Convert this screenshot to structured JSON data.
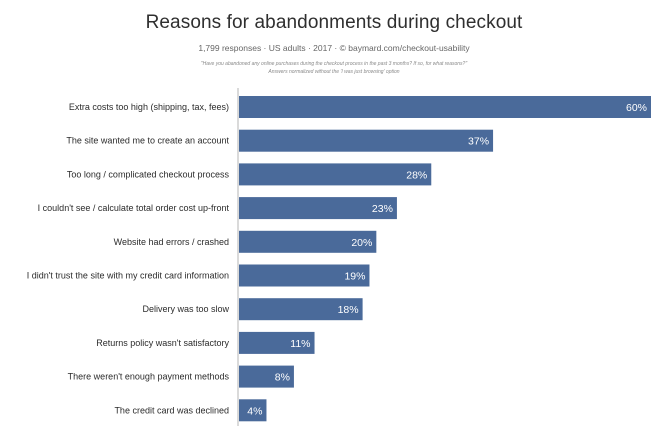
{
  "chart_data": {
    "type": "bar",
    "orientation": "horizontal",
    "title": "Reasons for abandonments during checkout",
    "subtitle": "1,799 responses · US adults · 2017 · © baymard.com/checkout-usability",
    "question_note": "\"Have you abandoned any online purchases during the checkout process in the past 3 months? If so, for what reasons?\"",
    "answers_note": "Answers normalized without the 'I was just browsing' option",
    "categories": [
      "Extra costs too high (shipping, tax, fees)",
      "The site wanted me to create an account",
      "Too long / complicated checkout process",
      "I couldn't see / calculate total order cost up-front",
      "Website had errors / crashed",
      "I didn't trust the site with my credit card information",
      "Delivery was too slow",
      "Returns policy wasn't satisfactory",
      "There weren't enough payment methods",
      "The credit card was declined"
    ],
    "values": [
      60,
      37,
      28,
      23,
      20,
      19,
      18,
      11,
      8,
      4
    ],
    "value_labels": [
      "60%",
      "37%",
      "28%",
      "23%",
      "20%",
      "19%",
      "18%",
      "11%",
      "8%",
      "4%"
    ],
    "xlim": [
      0,
      60
    ],
    "bar_color": "#4a6a9a",
    "label_color": "#ffffff",
    "grid": false,
    "legend": "none"
  }
}
